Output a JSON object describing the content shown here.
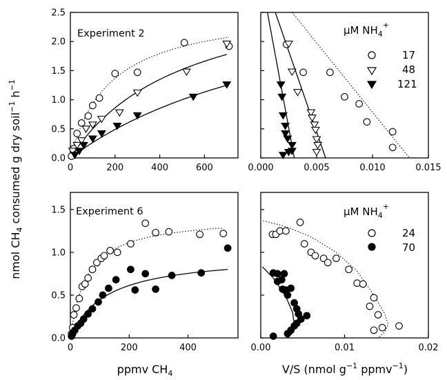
{
  "y_axis_label": {
    "prefix": "nmol CH",
    "sub": "4",
    "middle": " consumed g dry soil",
    "sup1": "−1",
    "sep": " h",
    "sup2": "−1"
  },
  "bottom_left_xlabel": {
    "main": "ppmv CH",
    "sub": "4"
  },
  "bottom_right_xlabel": {
    "a": "V/S (nmol g",
    "sup1": "−1",
    "b": " ppmv",
    "sup2": "−1",
    "c": ")"
  },
  "legend_top": {
    "prefix": "μM NH",
    "sub": "4",
    "sup": "+",
    "entries": [
      {
        "marker": "circle-open",
        "label": "17"
      },
      {
        "marker": "triangle-open",
        "label": "48"
      },
      {
        "marker": "triangle-filled",
        "label": "121"
      }
    ]
  },
  "legend_bottom": {
    "prefix": "μM NH",
    "sub": "4",
    "sup": "+",
    "entries": [
      {
        "marker": "circle-open",
        "label": "24"
      },
      {
        "marker": "circle-filled",
        "label": "70"
      }
    ]
  },
  "chart_data": [
    {
      "type": "scatter",
      "panel": "top-left",
      "title": "Experiment 2",
      "xlim": [
        0,
        750
      ],
      "ylim": [
        0,
        2.5
      ],
      "xticks": [
        0,
        200,
        400,
        600
      ],
      "yticks": [
        0.0,
        0.5,
        1.0,
        1.5,
        2.0,
        2.5
      ],
      "xtick_labels": [
        "0",
        "200",
        "400",
        "600"
      ],
      "ytick_labels": [
        "0.0",
        "0.5",
        "1.0",
        "1.5",
        "2.0",
        "2.5"
      ],
      "series": [
        {
          "name": "17",
          "marker": "circle-open",
          "fit": "dotted",
          "fit_params": {
            "vmax": 2.6,
            "km": 180
          },
          "points": [
            [
              5,
              0.03
            ],
            [
              15,
              0.16
            ],
            [
              30,
              0.42
            ],
            [
              50,
              0.6
            ],
            [
              80,
              0.72
            ],
            [
              100,
              0.9
            ],
            [
              130,
              1.03
            ],
            [
              200,
              1.45
            ],
            [
              300,
              1.47
            ],
            [
              510,
              1.98
            ],
            [
              710,
              1.92
            ]
          ]
        },
        {
          "name": "48",
          "marker": "triangle-open",
          "fit": "solid",
          "fit_params": {
            "vmax": 3.1,
            "km": 520
          },
          "points": [
            [
              10,
              0.12
            ],
            [
              30,
              0.22
            ],
            [
              50,
              0.3
            ],
            [
              70,
              0.5
            ],
            [
              100,
              0.57
            ],
            [
              140,
              0.67
            ],
            [
              220,
              0.78
            ],
            [
              300,
              1.12
            ],
            [
              520,
              1.48
            ],
            [
              700,
              1.96
            ]
          ]
        },
        {
          "name": "121",
          "marker": "triangle-filled",
          "fit": "solid",
          "fit_params": {
            "vmax": 3.3,
            "km": 1150
          },
          "points": [
            [
              20,
              0.05
            ],
            [
              40,
              0.12
            ],
            [
              60,
              0.22
            ],
            [
              100,
              0.33
            ],
            [
              140,
              0.42
            ],
            [
              210,
              0.55
            ],
            [
              300,
              0.73
            ],
            [
              550,
              1.05
            ],
            [
              700,
              1.26
            ]
          ]
        }
      ]
    },
    {
      "type": "scatter",
      "panel": "top-right",
      "title": "",
      "xlim": [
        0,
        0.015
      ],
      "ylim": [
        0,
        2.5
      ],
      "xticks": [
        0,
        0.005,
        0.01,
        0.015
      ],
      "yticks": [
        0.0,
        0.5,
        1.0,
        1.5,
        2.0,
        2.5
      ],
      "xtick_labels": [
        "0.000",
        "0.005",
        "0.010",
        "0.015"
      ],
      "ytick_labels": [],
      "series": [
        {
          "name": "17",
          "marker": "circle-open",
          "fit": "dotted",
          "fit_line": [
            [
              0.0028,
              2.5
            ],
            [
              0.0133,
              0
            ]
          ],
          "points": [
            [
              0.0023,
              1.95
            ],
            [
              0.0038,
              1.47
            ],
            [
              0.0062,
              1.47
            ],
            [
              0.0075,
              1.05
            ],
            [
              0.0088,
              0.93
            ],
            [
              0.0095,
              0.62
            ],
            [
              0.0118,
              0.45
            ],
            [
              0.0118,
              0.18
            ]
          ]
        },
        {
          "name": "48",
          "marker": "triangle-open",
          "fit": "solid",
          "fit_line": [
            [
              0.0013,
              2.5
            ],
            [
              0.0058,
              0
            ]
          ],
          "points": [
            [
              0.0025,
              1.96
            ],
            [
              0.0028,
              1.48
            ],
            [
              0.0033,
              1.13
            ],
            [
              0.0045,
              0.78
            ],
            [
              0.0046,
              0.69
            ],
            [
              0.0048,
              0.57
            ],
            [
              0.0049,
              0.48
            ],
            [
              0.005,
              0.32
            ],
            [
              0.0051,
              0.22
            ],
            [
              0.005,
              0.1
            ]
          ]
        },
        {
          "name": "121",
          "marker": "triangle-filled",
          "fit": "solid",
          "fit_line": [
            [
              0.0006,
              2.5
            ],
            [
              0.003,
              0
            ]
          ],
          "points": [
            [
              0.0018,
              1.26
            ],
            [
              0.0019,
              1.05
            ],
            [
              0.002,
              0.73
            ],
            [
              0.0022,
              0.55
            ],
            [
              0.0022,
              0.42
            ],
            [
              0.0024,
              0.33
            ],
            [
              0.0028,
              0.22
            ],
            [
              0.0028,
              0.12
            ],
            [
              0.0025,
              0.1
            ],
            [
              0.002,
              0.05
            ]
          ]
        }
      ]
    },
    {
      "type": "scatter",
      "panel": "bottom-left",
      "title": "Experiment 6",
      "xlim": [
        0,
        570
      ],
      "ylim": [
        0,
        1.7
      ],
      "xticks": [
        0,
        200,
        400
      ],
      "yticks": [
        0.0,
        0.5,
        1.0,
        1.5
      ],
      "xtick_labels": [
        "0",
        "200",
        "400"
      ],
      "ytick_labels": [
        "0.0",
        "0.5",
        "1.0",
        "1.5"
      ],
      "series": [
        {
          "name": "24",
          "marker": "circle-open",
          "fit": "dotted",
          "fit_params": {
            "vmax": 1.42,
            "km": 55
          },
          "points": [
            [
              4,
              0.05
            ],
            [
              8,
              0.12
            ],
            [
              12,
              0.27
            ],
            [
              20,
              0.35
            ],
            [
              30,
              0.46
            ],
            [
              40,
              0.6
            ],
            [
              50,
              0.63
            ],
            [
              60,
              0.7
            ],
            [
              75,
              0.8
            ],
            [
              90,
              0.88
            ],
            [
              105,
              0.93
            ],
            [
              115,
              0.96
            ],
            [
              135,
              1.02
            ],
            [
              160,
              1.0
            ],
            [
              205,
              1.1
            ],
            [
              255,
              1.34
            ],
            [
              290,
              1.23
            ],
            [
              335,
              1.24
            ],
            [
              440,
              1.21
            ],
            [
              520,
              1.22
            ]
          ]
        },
        {
          "name": "70",
          "marker": "circle-filled",
          "fit": "solid",
          "fit_params": {
            "vmax": 0.98,
            "km": 120
          },
          "points": [
            [
              4,
              0.02
            ],
            [
              8,
              0.05
            ],
            [
              15,
              0.09
            ],
            [
              25,
              0.14
            ],
            [
              35,
              0.17
            ],
            [
              45,
              0.22
            ],
            [
              60,
              0.28
            ],
            [
              75,
              0.34
            ],
            [
              95,
              0.42
            ],
            [
              110,
              0.5
            ],
            [
              130,
              0.58
            ],
            [
              155,
              0.68
            ],
            [
              205,
              0.8
            ],
            [
              220,
              0.56
            ],
            [
              255,
              0.75
            ],
            [
              290,
              0.57
            ],
            [
              345,
              0.73
            ],
            [
              445,
              0.76
            ],
            [
              535,
              1.05
            ]
          ]
        }
      ]
    },
    {
      "type": "scatter",
      "panel": "bottom-right",
      "title": "",
      "xlim": [
        0,
        0.02
      ],
      "ylim": [
        0,
        1.7
      ],
      "xticks": [
        0,
        0.01,
        0.02
      ],
      "yticks": [
        0.0,
        0.5,
        1.0,
        1.5
      ],
      "xtick_labels": [
        "0.00",
        "0.01",
        "0.02"
      ],
      "ytick_labels": [],
      "series": [
        {
          "name": "24",
          "marker": "circle-open",
          "fit": "dotted",
          "fit_curve": [
            [
              0.0003,
              1.37
            ],
            [
              0.003,
              1.3
            ],
            [
              0.006,
              1.18
            ],
            [
              0.009,
              1.0
            ],
            [
              0.0115,
              0.78
            ],
            [
              0.0135,
              0.5
            ],
            [
              0.0148,
              0.28
            ],
            [
              0.0152,
              0.16
            ],
            [
              0.0148,
              0.07
            ],
            [
              0.014,
              0.0
            ]
          ],
          "points": [
            [
              0.0014,
              1.21
            ],
            [
              0.0018,
              1.21
            ],
            [
              0.0023,
              1.25
            ],
            [
              0.003,
              1.25
            ],
            [
              0.0047,
              1.35
            ],
            [
              0.0052,
              1.1
            ],
            [
              0.006,
              1.0
            ],
            [
              0.0065,
              0.96
            ],
            [
              0.0075,
              0.93
            ],
            [
              0.008,
              0.88
            ],
            [
              0.009,
              0.93
            ],
            [
              0.0105,
              0.8
            ],
            [
              0.0115,
              0.64
            ],
            [
              0.0122,
              0.63
            ],
            [
              0.013,
              0.37
            ],
            [
              0.0135,
              0.47
            ],
            [
              0.014,
              0.27
            ],
            [
              0.0135,
              0.09
            ],
            [
              0.0145,
              0.12
            ],
            [
              0.0165,
              0.14
            ]
          ]
        },
        {
          "name": "70",
          "marker": "circle-filled",
          "fit": "solid",
          "fit_curve": [
            [
              0.0002,
              0.83
            ],
            [
              0.0015,
              0.7
            ],
            [
              0.003,
              0.48
            ],
            [
              0.0038,
              0.3
            ],
            [
              0.004,
              0.15
            ],
            [
              0.0037,
              0.05
            ],
            [
              0.0032,
              0.0
            ]
          ],
          "points": [
            [
              0.0015,
              0.02
            ],
            [
              0.0015,
              0.76
            ],
            [
              0.002,
              0.66
            ],
            [
              0.002,
              0.75
            ],
            [
              0.0025,
              0.68
            ],
            [
              0.0028,
              0.75
            ],
            [
              0.0026,
              0.57
            ],
            [
              0.003,
              0.56
            ],
            [
              0.0032,
              0.5
            ],
            [
              0.0036,
              0.58
            ],
            [
              0.004,
              0.41
            ],
            [
              0.0043,
              0.34
            ],
            [
              0.0045,
              0.28
            ],
            [
              0.0048,
              0.22
            ],
            [
              0.0043,
              0.17
            ],
            [
              0.004,
              0.14
            ],
            [
              0.0036,
              0.09
            ],
            [
              0.0032,
              0.05
            ],
            [
              0.0055,
              0.26
            ]
          ]
        }
      ]
    }
  ]
}
